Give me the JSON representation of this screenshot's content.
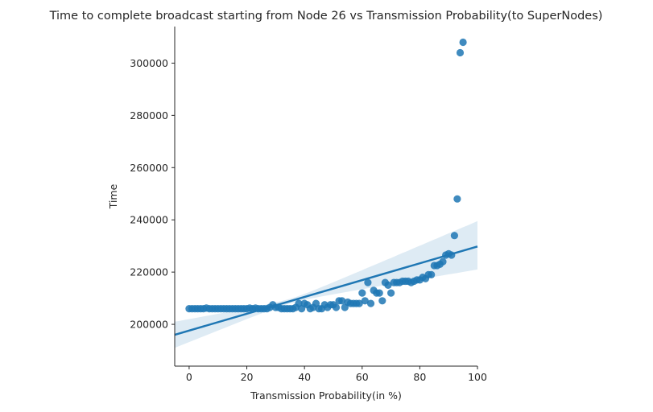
{
  "chart_data": {
    "type": "scatter",
    "title": "Time to complete broadcast starting from Node 26 vs Transmission Probability(to SuperNodes)",
    "xlabel": "Transmission Probability(in %)",
    "ylabel": "Time",
    "xlim": [
      -5,
      100
    ],
    "ylim": [
      184000,
      314000
    ],
    "xticks": [
      0,
      20,
      40,
      60,
      80,
      100
    ],
    "xtick_labels": [
      "0",
      "20",
      "40",
      "60",
      "80",
      "100"
    ],
    "yticks": [
      200000,
      220000,
      240000,
      260000,
      280000,
      300000
    ],
    "ytick_labels": [
      "200000",
      "220000",
      "240000",
      "260000",
      "280000",
      "300000"
    ],
    "grid": false,
    "legend": "none",
    "colors": {
      "points": "#1f77b4",
      "line": "#1f77b4",
      "band": "#1f77b4"
    },
    "points": {
      "x": [
        0,
        1,
        2,
        3,
        4,
        5,
        6,
        7,
        8,
        9,
        10,
        11,
        12,
        13,
        14,
        15,
        16,
        17,
        18,
        19,
        20,
        21,
        22,
        23,
        24,
        25,
        26,
        27,
        28,
        29,
        30,
        31,
        32,
        33,
        34,
        35,
        36,
        37,
        38,
        39,
        40,
        41,
        42,
        43,
        44,
        45,
        46,
        47,
        48,
        49,
        50,
        51,
        52,
        53,
        54,
        55,
        56,
        57,
        58,
        59,
        60,
        61,
        62,
        63,
        64,
        65,
        66,
        67,
        68,
        69,
        70,
        71,
        72,
        73,
        74,
        75,
        76,
        77,
        78,
        79,
        80,
        81,
        82,
        83,
        84,
        85,
        86,
        87,
        88,
        89,
        90,
        91,
        92,
        93,
        94,
        95
      ],
      "y": [
        206000,
        206000,
        206000,
        206000,
        206000,
        206000,
        206200,
        206000,
        206000,
        206000,
        206000,
        206000,
        206000,
        206000,
        206000,
        206000,
        206000,
        206000,
        206000,
        206000,
        206000,
        206200,
        206000,
        206200,
        206000,
        206000,
        206000,
        206000,
        206500,
        207500,
        206500,
        206500,
        206000,
        206000,
        206000,
        206000,
        206000,
        206500,
        208000,
        206000,
        208000,
        207500,
        206000,
        206500,
        208000,
        206000,
        206000,
        207500,
        206500,
        207500,
        207500,
        206500,
        209000,
        209000,
        206500,
        208500,
        208000,
        208000,
        208000,
        208000,
        212000,
        209000,
        216000,
        208000,
        213000,
        212000,
        212000,
        209000,
        216000,
        215000,
        212000,
        216000,
        216000,
        216000,
        216500,
        216500,
        216500,
        216000,
        216500,
        217000,
        217000,
        218000,
        217500,
        219000,
        219000,
        222500,
        222500,
        223000,
        224000,
        226500,
        227000,
        226500,
        234000,
        248000,
        304000,
        308000
      ]
    },
    "regression": {
      "x": [
        -5,
        100
      ],
      "y": [
        196000,
        229800
      ],
      "ci_lower": [
        191000,
        221000
      ],
      "ci_upper": [
        201000,
        239500
      ],
      "ci_x_at_narrowest": 35,
      "ci_halfwidth_at_narrowest": 900
    }
  }
}
